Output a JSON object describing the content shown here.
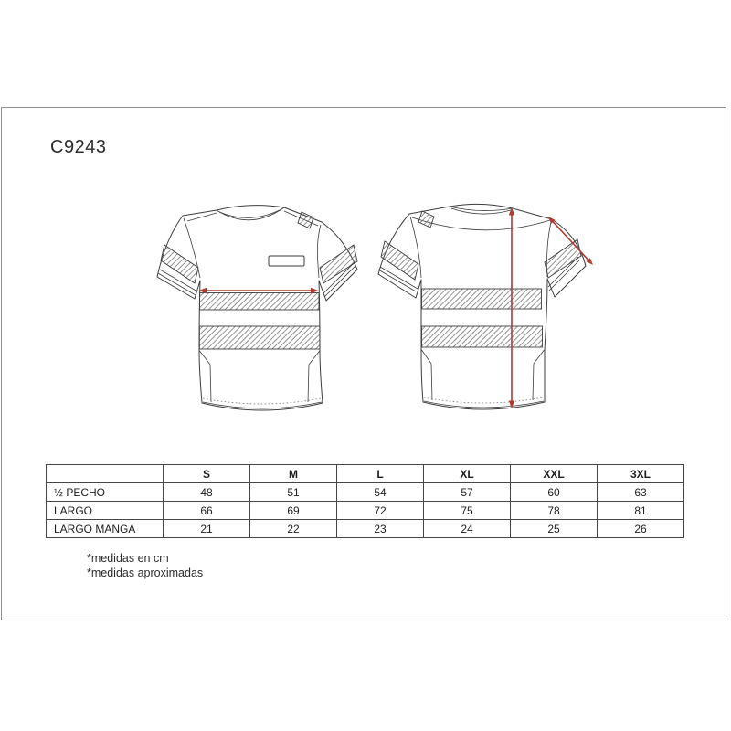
{
  "title": "C9243",
  "size_table": {
    "corner_label": "",
    "columns": [
      "S",
      "M",
      "L",
      "XL",
      "XXL",
      "3XL"
    ],
    "rows": [
      {
        "label": "½ PECHO",
        "values": [
          "48",
          "51",
          "54",
          "57",
          "60",
          "63"
        ]
      },
      {
        "label": "LARGO",
        "values": [
          "66",
          "69",
          "72",
          "75",
          "78",
          "81"
        ]
      },
      {
        "label": "LARGO MANGA",
        "values": [
          "21",
          "22",
          "23",
          "24",
          "25",
          "26"
        ]
      }
    ]
  },
  "footnotes": [
    "*medidas en cm",
    "*medidas aproximadas"
  ],
  "colors": {
    "measure_arrow_red": "#b23a30",
    "line_art": "#3d3d3d",
    "hatch": "#6e6e6e",
    "frame_border": "#909090",
    "table_border": "#454545",
    "text": "#262626",
    "background": "#ffffff"
  }
}
